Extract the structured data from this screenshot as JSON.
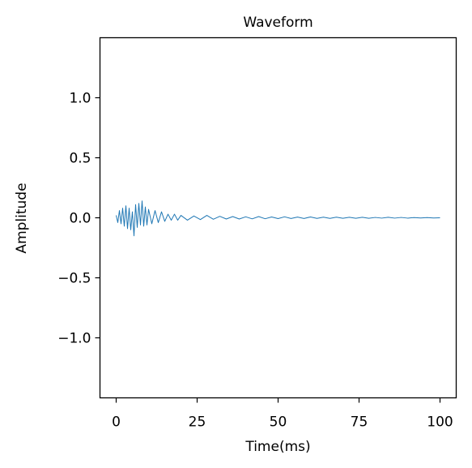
{
  "chart_data": {
    "type": "line",
    "title": "Waveform",
    "xlabel": "Time(ms)",
    "ylabel": "Amplitude",
    "xlim": [
      -5,
      105
    ],
    "ylim": [
      -1.5,
      1.5
    ],
    "xticks": [
      0,
      25,
      50,
      75,
      100
    ],
    "xtick_labels": [
      "0",
      "25",
      "50",
      "75",
      "100"
    ],
    "yticks": [
      1.0,
      0.5,
      0.0,
      -0.5,
      -1.0
    ],
    "ytick_labels": [
      "1.0",
      "0.5",
      "0.0",
      "−0.5",
      "−1.0"
    ],
    "grid": false,
    "legend": "none",
    "series": [
      {
        "color": "#1f77b4",
        "description_of_signal": "decaying noise burst",
        "x": [
          0,
          0.5,
          1,
          1.5,
          2,
          2.5,
          3,
          3.5,
          4,
          4.5,
          5,
          5.5,
          6,
          6.5,
          7,
          7.5,
          8,
          8.5,
          9,
          9.5,
          10,
          11,
          12,
          13,
          14,
          15,
          16,
          17,
          18,
          19,
          20,
          22,
          24,
          26,
          28,
          30,
          32,
          34,
          36,
          38,
          40,
          42,
          44,
          46,
          48,
          50,
          52,
          54,
          56,
          58,
          60,
          62,
          64,
          66,
          68,
          70,
          72,
          74,
          76,
          78,
          80,
          82,
          84,
          86,
          88,
          90,
          92,
          94,
          96,
          98,
          100
        ],
        "y": [
          0.02,
          -0.04,
          0.06,
          -0.05,
          0.08,
          -0.07,
          0.1,
          -0.09,
          0.08,
          -0.1,
          0.05,
          -0.15,
          0.11,
          -0.08,
          0.12,
          -0.06,
          0.14,
          -0.07,
          0.09,
          -0.06,
          0.07,
          -0.05,
          0.06,
          -0.04,
          0.05,
          -0.03,
          0.03,
          -0.02,
          0.03,
          -0.02,
          0.02,
          -0.02,
          0.015,
          -0.015,
          0.02,
          -0.012,
          0.012,
          -0.01,
          0.01,
          -0.01,
          0.008,
          -0.009,
          0.01,
          -0.008,
          0.007,
          -0.007,
          0.008,
          -0.006,
          0.006,
          -0.006,
          0.007,
          -0.005,
          0.005,
          -0.005,
          0.005,
          -0.004,
          0.004,
          -0.004,
          0.004,
          -0.004,
          0.003,
          -0.003,
          0.004,
          -0.003,
          0.003,
          -0.003,
          0.002,
          -0.002,
          0.002,
          -0.002,
          0.0
        ]
      }
    ]
  }
}
